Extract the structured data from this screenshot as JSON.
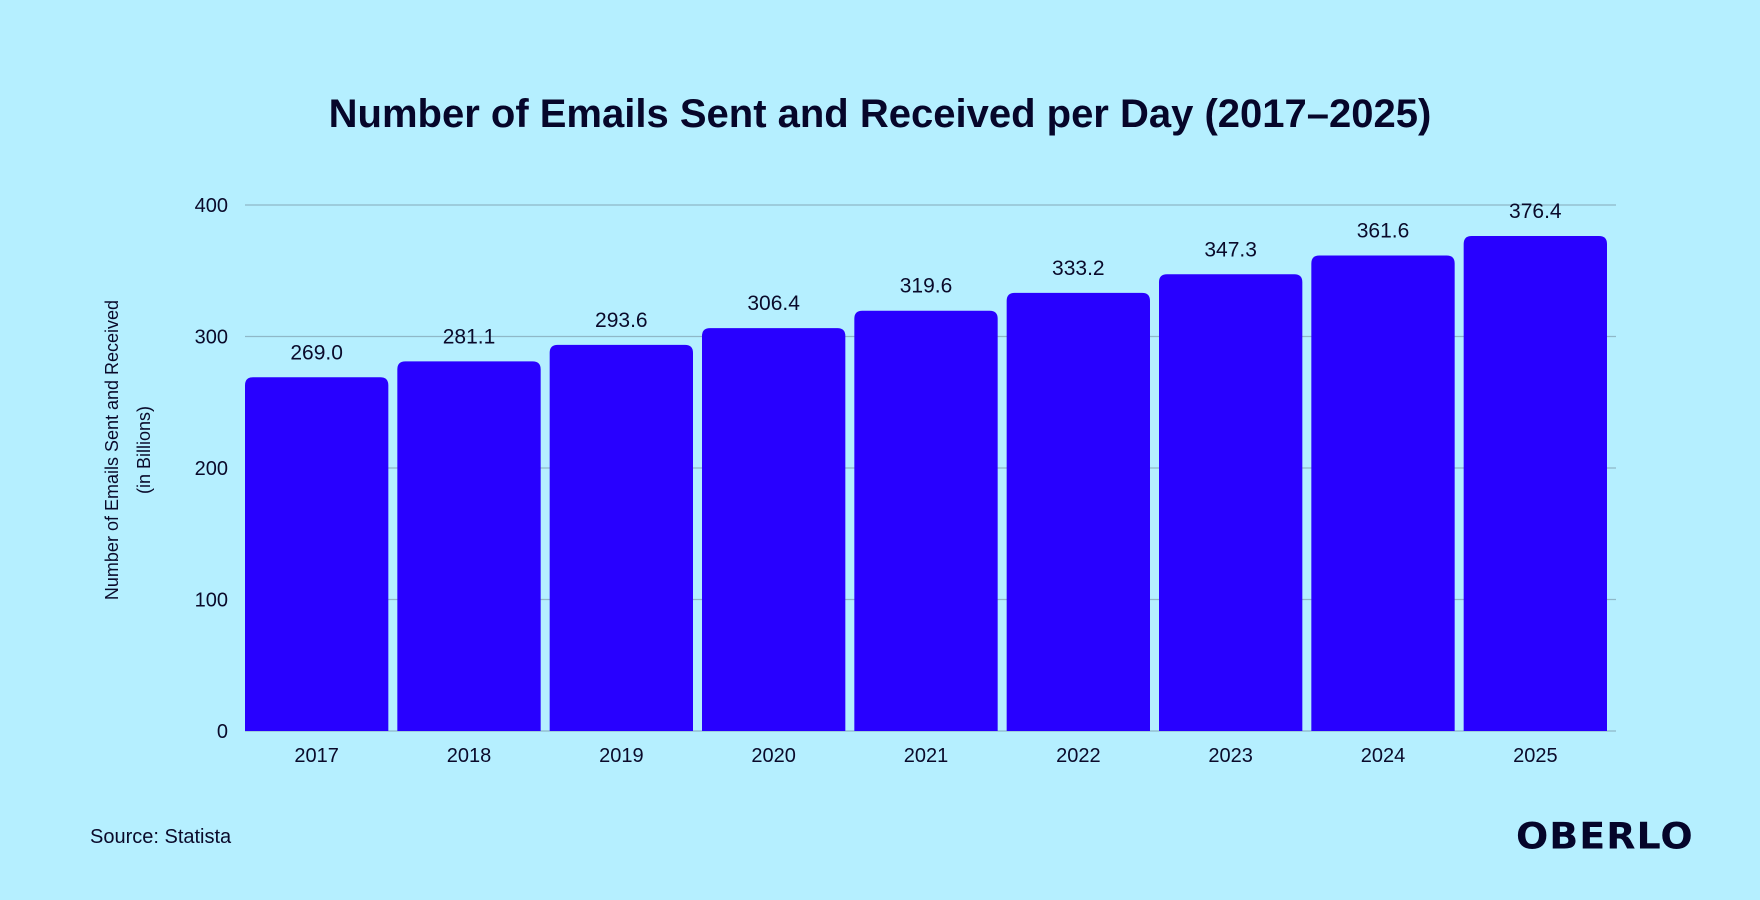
{
  "chart_data": {
    "type": "bar",
    "title": "Number of Emails Sent and Received per Day (2017–2025)",
    "xlabel": "",
    "ylabel_line1": "Number of Emails Sent and Received",
    "ylabel_line2": "(in Billions)",
    "categories": [
      "2017",
      "2018",
      "2019",
      "2020",
      "2021",
      "2022",
      "2023",
      "2024",
      "2025"
    ],
    "values": [
      269.0,
      281.1,
      293.6,
      306.4,
      319.6,
      333.2,
      347.3,
      361.6,
      376.4
    ],
    "value_labels": [
      "269.0",
      "281.1",
      "293.6",
      "306.4",
      "319.6",
      "333.2",
      "347.3",
      "361.6",
      "376.4"
    ],
    "ylim": [
      0,
      400
    ],
    "yticks": [
      0,
      100,
      200,
      300,
      400
    ],
    "grid": true,
    "bar_color": "#2800ff",
    "background_color": "#b5efff"
  },
  "footer": {
    "source": "Source: Statista",
    "logo": "OBERLO"
  }
}
